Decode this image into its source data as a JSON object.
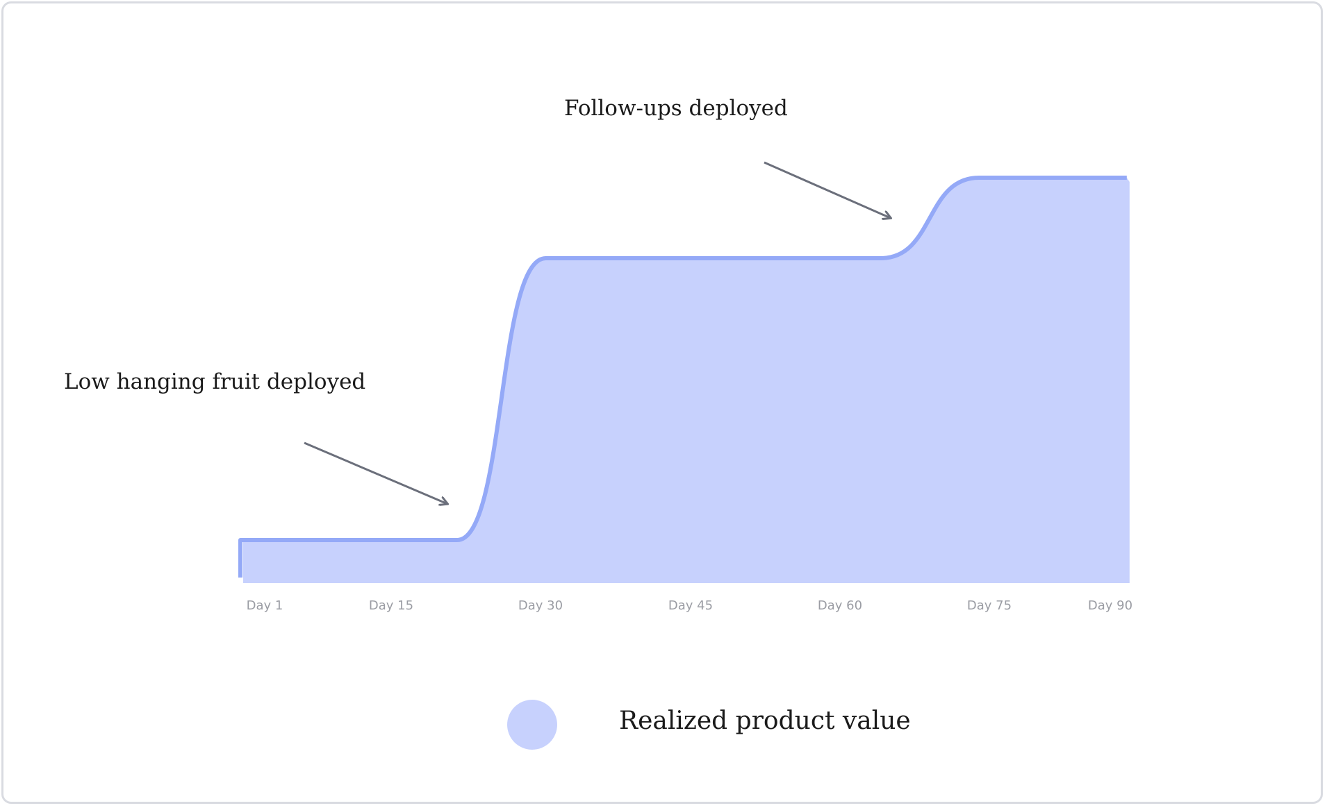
{
  "chart_data": {
    "type": "area",
    "x_unit": "day",
    "x_ticks": [
      {
        "x": 1,
        "label": "Day 1"
      },
      {
        "x": 15,
        "label": "Day 15"
      },
      {
        "x": 30,
        "label": "Day 30"
      },
      {
        "x": 45,
        "label": "Day 45"
      },
      {
        "x": 60,
        "label": "Day 60"
      },
      {
        "x": 75,
        "label": "Day 75"
      },
      {
        "x": 90,
        "label": "Day 90"
      }
    ],
    "xlim": [
      0,
      91
    ],
    "ylim": [
      0,
      100
    ],
    "y_axis_shown": false,
    "grid": false,
    "series": [
      {
        "name": "Realized product value",
        "color": "#c7d1fd",
        "line_color": "#94a9f7",
        "points": [
          {
            "x": 0,
            "y": 10
          },
          {
            "x": 22,
            "y": 10
          },
          {
            "x": 31,
            "y": 80
          },
          {
            "x": 65,
            "y": 80
          },
          {
            "x": 75,
            "y": 100
          },
          {
            "x": 90,
            "y": 100
          }
        ]
      }
    ],
    "annotations": [
      {
        "text": "Low hanging fruit deployed",
        "arrow_to": {
          "x": 21,
          "y": 19
        }
      },
      {
        "text": "Follow-ups deployed",
        "arrow_to": {
          "x": 66,
          "y": 90
        }
      }
    ],
    "legend": {
      "position": "bottom-center",
      "label": "Realized product value",
      "color": "#c7d1fd"
    }
  }
}
